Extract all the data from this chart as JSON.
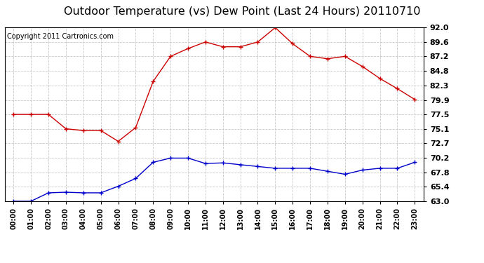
{
  "title": "Outdoor Temperature (vs) Dew Point (Last 24 Hours) 20110710",
  "copyright": "Copyright 2011 Cartronics.com",
  "hours": [
    "00:00",
    "01:00",
    "02:00",
    "03:00",
    "04:00",
    "05:00",
    "06:00",
    "07:00",
    "08:00",
    "09:00",
    "10:00",
    "11:00",
    "12:00",
    "13:00",
    "14:00",
    "15:00",
    "16:00",
    "17:00",
    "18:00",
    "19:00",
    "20:00",
    "21:00",
    "22:00",
    "23:00"
  ],
  "temp": [
    77.5,
    77.5,
    77.5,
    75.1,
    74.8,
    74.8,
    73.0,
    75.3,
    83.0,
    87.2,
    88.5,
    89.6,
    88.8,
    88.8,
    89.6,
    92.0,
    89.3,
    87.2,
    86.8,
    87.2,
    85.5,
    83.5,
    81.8,
    80.0
  ],
  "dew": [
    63.0,
    63.0,
    64.4,
    64.5,
    64.4,
    64.4,
    65.5,
    66.8,
    69.5,
    70.2,
    70.2,
    69.3,
    69.4,
    69.1,
    68.8,
    68.5,
    68.5,
    68.5,
    68.0,
    67.5,
    68.2,
    68.5,
    68.5,
    69.5
  ],
  "temp_color": "#cc0000",
  "dew_color": "#0000cc",
  "bg_color": "#ffffff",
  "plot_bg": "#ffffff",
  "grid_color": "#c8c8c8",
  "ylim_min": 63.0,
  "ylim_max": 92.0,
  "yticks": [
    63.0,
    65.4,
    67.8,
    70.2,
    72.7,
    75.1,
    77.5,
    79.9,
    82.3,
    84.8,
    87.2,
    89.6,
    92.0
  ],
  "title_fontsize": 11.5,
  "copyright_fontsize": 7
}
